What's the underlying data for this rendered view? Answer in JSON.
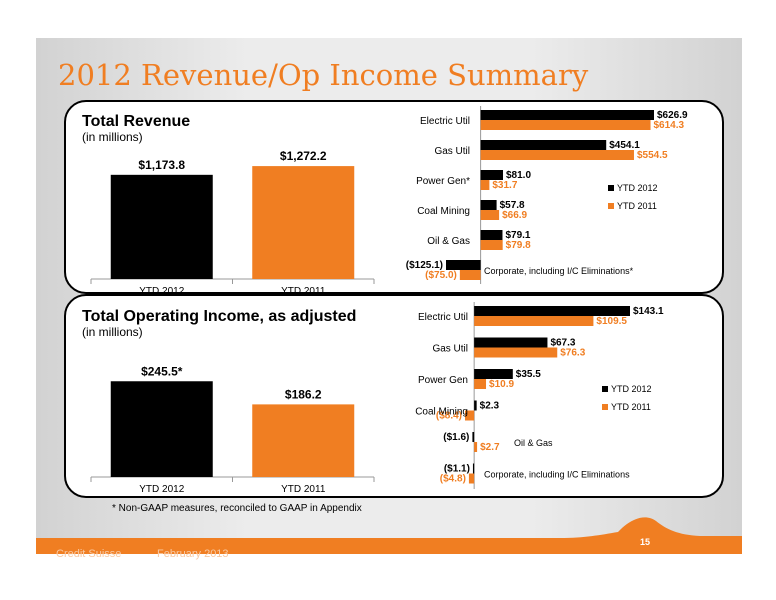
{
  "title": "2012 Revenue/Op Income Summary",
  "colors": {
    "orange": "#f07e22",
    "black": "#000000"
  },
  "revenue": {
    "title": "Total Revenue",
    "subtitle": "(in millions)"
  },
  "opincome": {
    "title": "Total Operating Income, as adjusted",
    "subtitle": "(in millions)"
  },
  "footnote": "* Non-GAAP measures, reconciled to GAAP in Appendix",
  "footer": {
    "company": "Credit Suisse",
    "date": "February 2013",
    "page": "15"
  },
  "chart_data": [
    {
      "id": "rev_total",
      "type": "bar",
      "categories": [
        "YTD 2012",
        "YTD 2011"
      ],
      "values": [
        1173.8,
        1272.2
      ],
      "labels": [
        "$1,173.8",
        "$1,272.2"
      ],
      "colors": [
        "#000000",
        "#f07e22"
      ],
      "ylim": [
        0,
        1600
      ]
    },
    {
      "id": "rev_segments",
      "type": "bar",
      "orientation": "horizontal",
      "categories": [
        "Electric Util",
        "Gas Util",
        "Power Gen*",
        "Coal Mining",
        "Oil & Gas",
        "Corporate, including I/C Eliminations*"
      ],
      "series": [
        {
          "name": "YTD 2012",
          "values": [
            626.9,
            454.1,
            81.0,
            57.8,
            79.1,
            -125.1
          ],
          "labels": [
            "$626.9",
            "$454.1",
            "$81.0",
            "$57.8",
            "$79.1",
            "($125.1)"
          ]
        },
        {
          "name": "YTD 2011",
          "values": [
            614.3,
            554.5,
            31.7,
            66.9,
            79.8,
            -75.0
          ],
          "labels": [
            "$614.3",
            "$554.5",
            "$31.7",
            "$66.9",
            "$79.8",
            "($75.0)"
          ]
        }
      ],
      "xlim": [
        -125.1,
        626.9
      ],
      "legend": "right"
    },
    {
      "id": "op_total",
      "type": "bar",
      "categories": [
        "YTD 2012",
        "YTD 2011"
      ],
      "values": [
        245.5,
        186.2
      ],
      "labels": [
        "$245.5*",
        "$186.2"
      ],
      "colors": [
        "#000000",
        "#f07e22"
      ],
      "ylim": [
        0,
        300
      ]
    },
    {
      "id": "op_segments",
      "type": "bar",
      "orientation": "horizontal",
      "categories": [
        "Electric Util",
        "Gas Util",
        "Power Gen",
        "Coal Mining",
        "Oil & Gas",
        "Corporate, including I/C Eliminations"
      ],
      "series": [
        {
          "name": "YTD 2012",
          "values": [
            143.1,
            67.3,
            35.5,
            2.3,
            -1.6,
            -1.1
          ],
          "labels": [
            "$143.1",
            "$67.3",
            "$35.5",
            "$2.3",
            "($1.6)",
            "($1.1)"
          ]
        },
        {
          "name": "YTD 2011",
          "values": [
            109.5,
            76.3,
            10.9,
            -8.4,
            2.7,
            -4.8
          ],
          "labels": [
            "$109.5",
            "$76.3",
            "$10.9",
            "($8.4)",
            "$2.7",
            "($4.8)"
          ]
        }
      ],
      "xlim": [
        -8.4,
        143.1
      ],
      "legend": "right"
    }
  ]
}
